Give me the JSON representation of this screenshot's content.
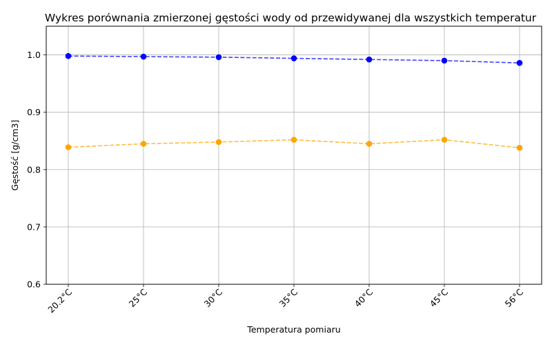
{
  "chart_data": {
    "type": "line",
    "title": "Wykres porównania zmierzonej gęstości wody od przewidywanej dla wszystkich temperatur",
    "xlabel": "Temperatura pomiaru",
    "ylabel": "Gęstość [g/cm3]",
    "categories": [
      "20.2°C",
      "25°C",
      "30°C",
      "35°C",
      "40°C",
      "45°C",
      "56°C"
    ],
    "yticks": [
      "0.6",
      "0.7",
      "0.8",
      "0.9",
      "1.0"
    ],
    "ylim": [
      0.6,
      1.05
    ],
    "grid": true,
    "series": [
      {
        "color": "#0000ff",
        "line_style": "dashed",
        "marker": "circle",
        "values": [
          0.998,
          0.997,
          0.996,
          0.994,
          0.992,
          0.99,
          0.986
        ]
      },
      {
        "color": "#ffa500",
        "line_style": "dashed",
        "marker": "circle",
        "values": [
          0.839,
          0.845,
          0.848,
          0.852,
          0.845,
          0.852,
          0.838
        ]
      }
    ]
  }
}
